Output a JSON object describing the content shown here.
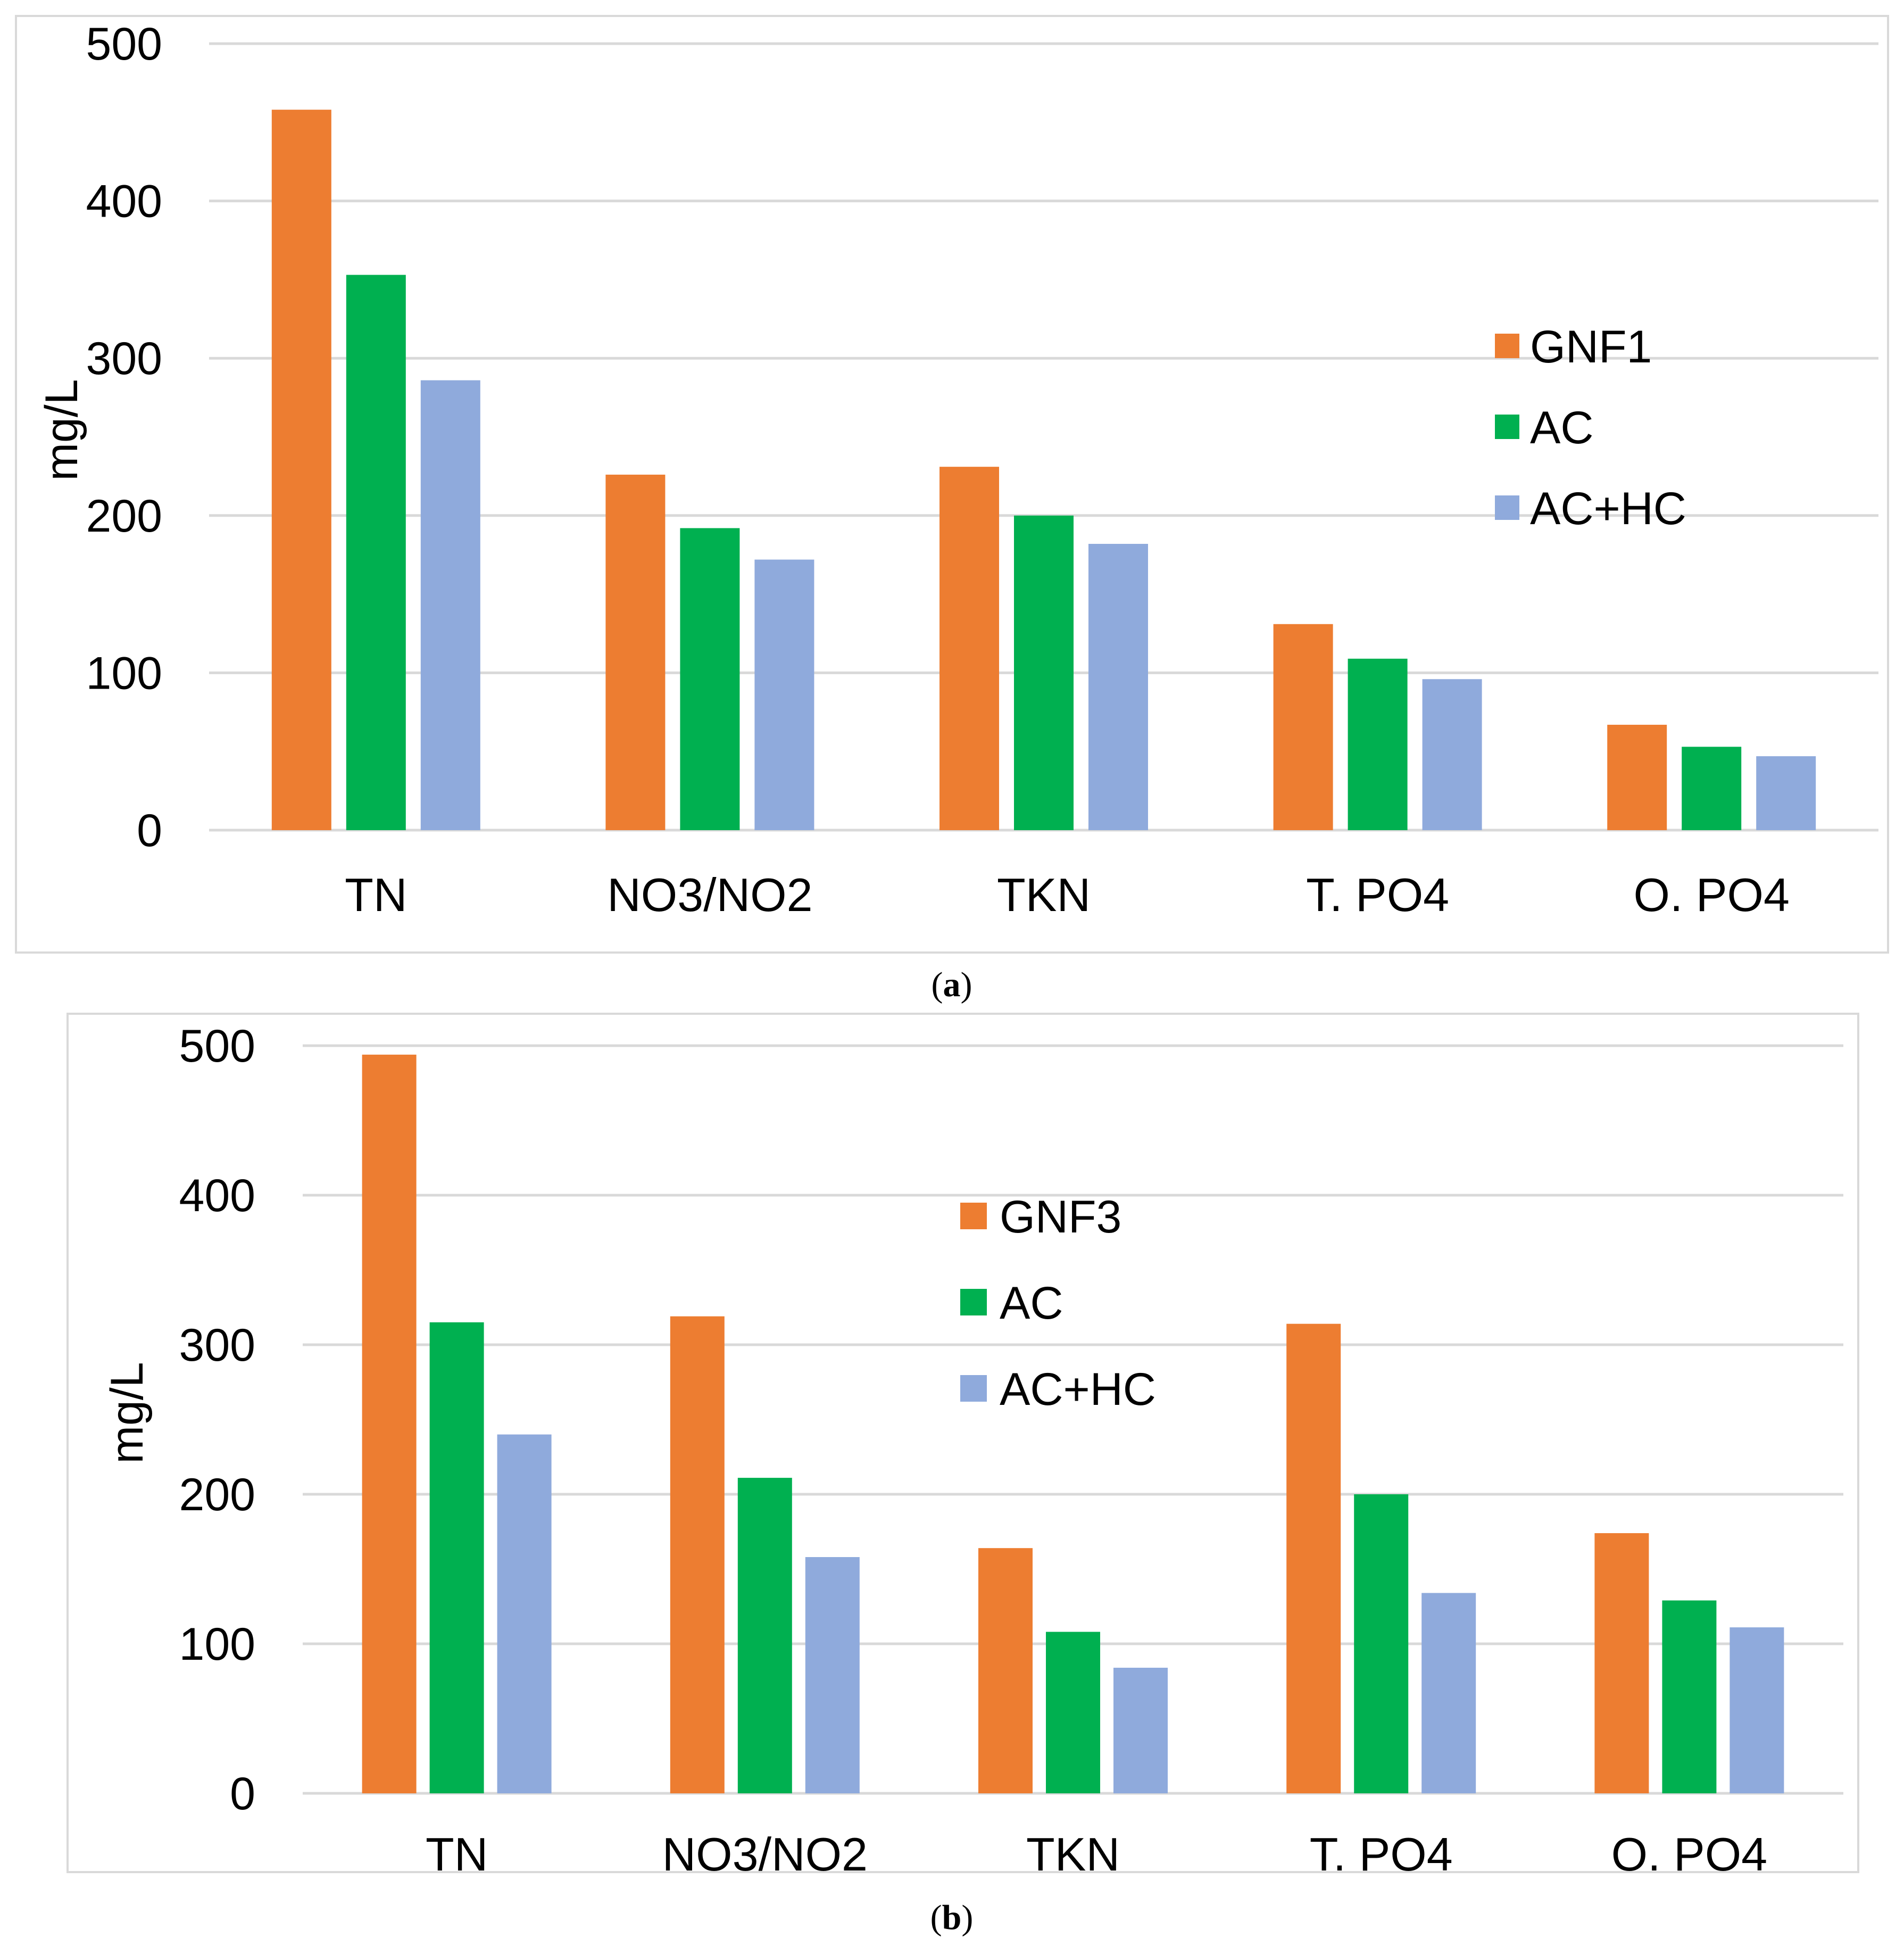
{
  "chart_data": [
    {
      "type": "bar",
      "panel": "a",
      "caption": {
        "open": "(",
        "letter": "a",
        "close": ")"
      },
      "ylabel": "mg/L",
      "ylim": [
        0,
        500
      ],
      "yticks": [
        "0",
        "100",
        "200",
        "300",
        "400",
        "500"
      ],
      "categories": [
        "TN",
        "NO3/NO2",
        "TKN",
        "T. PO4",
        "O. PO4"
      ],
      "legend_position": "right",
      "series": [
        {
          "name": "GNF1",
          "color": "#ed7d31",
          "values": [
            458,
            226,
            231,
            131,
            67
          ]
        },
        {
          "name": "AC",
          "color": "#00b050",
          "values": [
            353,
            192,
            200,
            109,
            53
          ]
        },
        {
          "name": "AC+HC",
          "color": "#8faadc",
          "values": [
            286,
            172,
            182,
            96,
            47
          ]
        }
      ]
    },
    {
      "type": "bar",
      "panel": "b",
      "caption": {
        "open": "(",
        "letter": "b",
        "close": ")"
      },
      "ylabel": "mg/L",
      "ylim": [
        0,
        500
      ],
      "yticks": [
        "0",
        "100",
        "200",
        "300",
        "400",
        "500"
      ],
      "categories": [
        "TN",
        "NO3/NO2",
        "TKN",
        "T. PO4",
        "O. PO4"
      ],
      "legend_position": "top-center",
      "series": [
        {
          "name": "GNF3",
          "color": "#ed7d31",
          "values": [
            494,
            319,
            164,
            314,
            174
          ]
        },
        {
          "name": "AC",
          "color": "#00b050",
          "values": [
            315,
            211,
            108,
            200,
            129
          ]
        },
        {
          "name": "AC+HC",
          "color": "#8faadc",
          "values": [
            240,
            158,
            84,
            134,
            111
          ]
        }
      ]
    }
  ]
}
